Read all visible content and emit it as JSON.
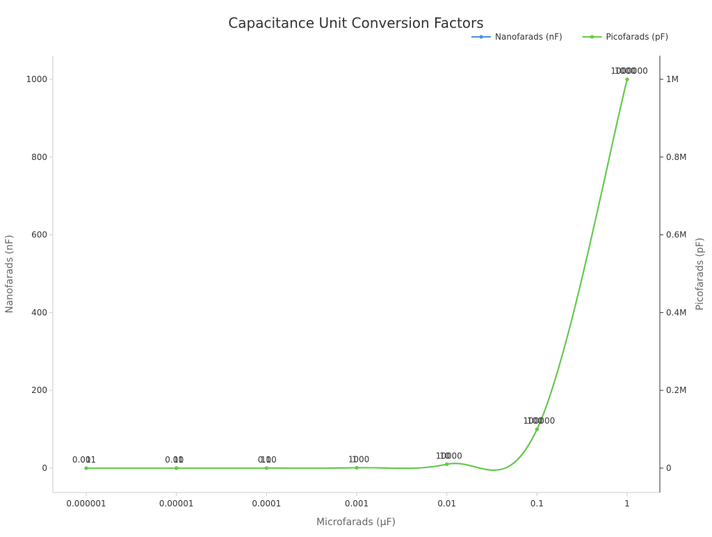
{
  "chart_data": {
    "type": "line",
    "title": "Capacitance Unit Conversion Factors",
    "xlabel": "Microfarads (µF)",
    "ylabel_left": "Nanofarads (nF)",
    "ylabel_right": "Picofarads (pF)",
    "x_scale": "log",
    "categories": [
      "0.000001",
      "0.00001",
      "0.0001",
      "0.001",
      "0.01",
      "0.1",
      "1"
    ],
    "x": [
      1e-06,
      1e-05,
      0.0001,
      0.001,
      0.01,
      0.1,
      1
    ],
    "ylim_left": [
      0,
      1000
    ],
    "ylim_right": [
      0,
      1000000
    ],
    "yticks_left": [
      "0",
      "200",
      "400",
      "600",
      "800",
      "1000"
    ],
    "yticks_right": [
      "0",
      "0.2M",
      "0.4M",
      "0.6M",
      "0.8M",
      "1M"
    ],
    "grid": false,
    "legend_position": "top-right",
    "series": [
      {
        "name": "Nanofarads (nF)",
        "axis": "left",
        "color": "#4a90e2",
        "values": [
          0.001,
          0.01,
          0.1,
          1,
          10,
          100,
          1000
        ],
        "labels": [
          "0.001",
          "0.01",
          "0.1",
          "1",
          "10",
          "100",
          "1000"
        ]
      },
      {
        "name": "Picofarads (pF)",
        "axis": "right",
        "color": "#66cc44",
        "values": [
          1,
          10,
          100,
          1000,
          10000,
          100000,
          1000000
        ],
        "labels": [
          "1",
          "10",
          "100",
          "1000",
          "10000",
          "100000",
          "1000000"
        ]
      }
    ]
  }
}
